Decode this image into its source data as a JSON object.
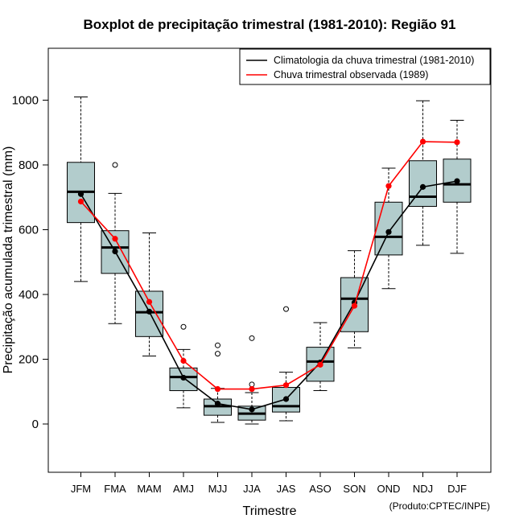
{
  "chart_data": {
    "type": "boxplot",
    "title": "Boxplot de precipitação trimestral (1981-2010): Região 91",
    "xlabel": "Trimestre",
    "ylabel": "Precipitação acumulada trimestral (mm)",
    "ylim": [
      -150,
      1160
    ],
    "yticks": [
      0,
      200,
      400,
      600,
      800,
      1000
    ],
    "categories": [
      "JFM",
      "FMA",
      "MAM",
      "AMJ",
      "MJJ",
      "JJA",
      "JAS",
      "ASO",
      "SON",
      "OND",
      "NDJ",
      "DJF"
    ],
    "boxes": [
      {
        "min": 440,
        "q1": 622,
        "median": 717,
        "q3": 808,
        "max": 1010,
        "outliers": []
      },
      {
        "min": 310,
        "q1": 465,
        "median": 545,
        "q3": 597,
        "max": 712,
        "outliers": [
          800
        ]
      },
      {
        "min": 210,
        "q1": 270,
        "median": 345,
        "q3": 410,
        "max": 590,
        "outliers": []
      },
      {
        "min": 50,
        "q1": 103,
        "median": 145,
        "q3": 173,
        "max": 230,
        "outliers": [
          300
        ]
      },
      {
        "min": 5,
        "q1": 27,
        "median": 55,
        "q3": 77,
        "max": 110,
        "outliers": [
          217,
          243
        ]
      },
      {
        "min": 0,
        "q1": 12,
        "median": 32,
        "q3": 55,
        "max": 97,
        "outliers": [
          122,
          265
        ]
      },
      {
        "min": 10,
        "q1": 37,
        "median": 55,
        "q3": 113,
        "max": 160,
        "outliers": [
          355
        ]
      },
      {
        "min": 103,
        "q1": 132,
        "median": 193,
        "q3": 237,
        "max": 313,
        "outliers": []
      },
      {
        "min": 235,
        "q1": 285,
        "median": 387,
        "q3": 452,
        "max": 535,
        "outliers": []
      },
      {
        "min": 418,
        "q1": 522,
        "median": 578,
        "q3": 685,
        "max": 790,
        "outliers": []
      },
      {
        "min": 552,
        "q1": 672,
        "median": 702,
        "q3": 813,
        "max": 998,
        "outliers": []
      },
      {
        "min": 527,
        "q1": 685,
        "median": 740,
        "q3": 818,
        "max": 938,
        "outliers": []
      }
    ],
    "series": [
      {
        "name": "Climatologia da chuva trimestral (1981-2010)",
        "color": "#000000",
        "values": [
          710,
          533,
          347,
          143,
          63,
          45,
          77,
          190,
          375,
          593,
          732,
          750
        ]
      },
      {
        "name": "Chuva trimestral observada (1989)",
        "color": "#ff0000",
        "values": [
          687,
          572,
          377,
          195,
          108,
          108,
          120,
          183,
          365,
          735,
          872,
          870
        ]
      }
    ],
    "box_fill": "#b2cccc",
    "legend_position": "top-right",
    "credit": "(Produto:CPTEC/INPE)"
  }
}
